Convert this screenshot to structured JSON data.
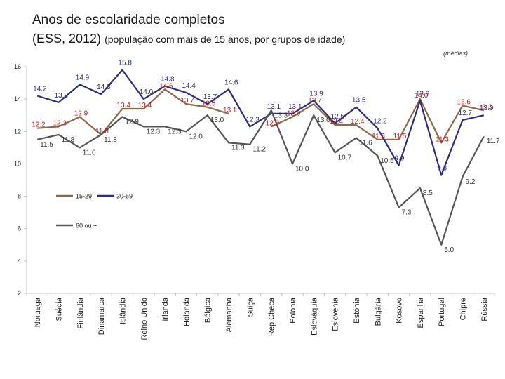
{
  "header": {
    "title": "Anos de escolaridade completos",
    "subtitle_main": "(ESS, 2012)",
    "subtitle_note": "(população com mais de 15 anos, por grupos de idade)",
    "units": "(médias)"
  },
  "chart_data": {
    "type": "line",
    "title": "Anos de escolaridade completos",
    "ylim": [
      2,
      16
    ],
    "yticks": [
      2,
      4,
      6,
      8,
      10,
      12,
      14,
      16
    ],
    "categories": [
      "Noruega",
      "Suécia",
      "Finlândia",
      "Dinamarca",
      "Islândia",
      "Reino Unido",
      "Irlanda",
      "Holanda",
      "Bélgica",
      "Alemanha",
      "Suiça",
      "Rep.Checa",
      "Polónia",
      "Eslováquia",
      "Eslovénia",
      "Estónia",
      "Bulgária",
      "Kosovo",
      "Espanha",
      "Portugal",
      "Chipre",
      "Rússia"
    ],
    "series": [
      {
        "name": "15-29",
        "color": "#8a6a4a",
        "label_color": "#b22222",
        "values": [
          12.2,
          12.3,
          12.9,
          11.8,
          13.4,
          13.4,
          14.6,
          13.7,
          13.5,
          13.1,
          null,
          12.3,
          12.9,
          13.7,
          12.4,
          12.4,
          11.5,
          11.5,
          14.0,
          11.3,
          13.6,
          13.3
        ]
      },
      {
        "name": "30-59",
        "color": "#2e2e7a",
        "label_color": "#2e2e7a",
        "values": [
          14.2,
          13.8,
          14.9,
          14.3,
          15.8,
          14.0,
          14.8,
          14.4,
          13.7,
          14.6,
          12.3,
          13.1,
          13.1,
          13.9,
          12.5,
          13.5,
          12.2,
          9.9,
          13.9,
          9.3,
          12.7,
          13.0
        ]
      },
      {
        "name": "60 ou +",
        "color": "#555555",
        "label_color": "#333333",
        "values": [
          11.5,
          11.8,
          11.0,
          11.8,
          12.9,
          12.3,
          12.3,
          12.0,
          13.0,
          11.3,
          11.2,
          13.3,
          10.0,
          13.0,
          10.7,
          11.6,
          10.5,
          7.3,
          8.5,
          5.0,
          9.2,
          11.7
        ]
      }
    ],
    "legend": [
      "15-29",
      "30-59",
      "60 ou +"
    ]
  }
}
